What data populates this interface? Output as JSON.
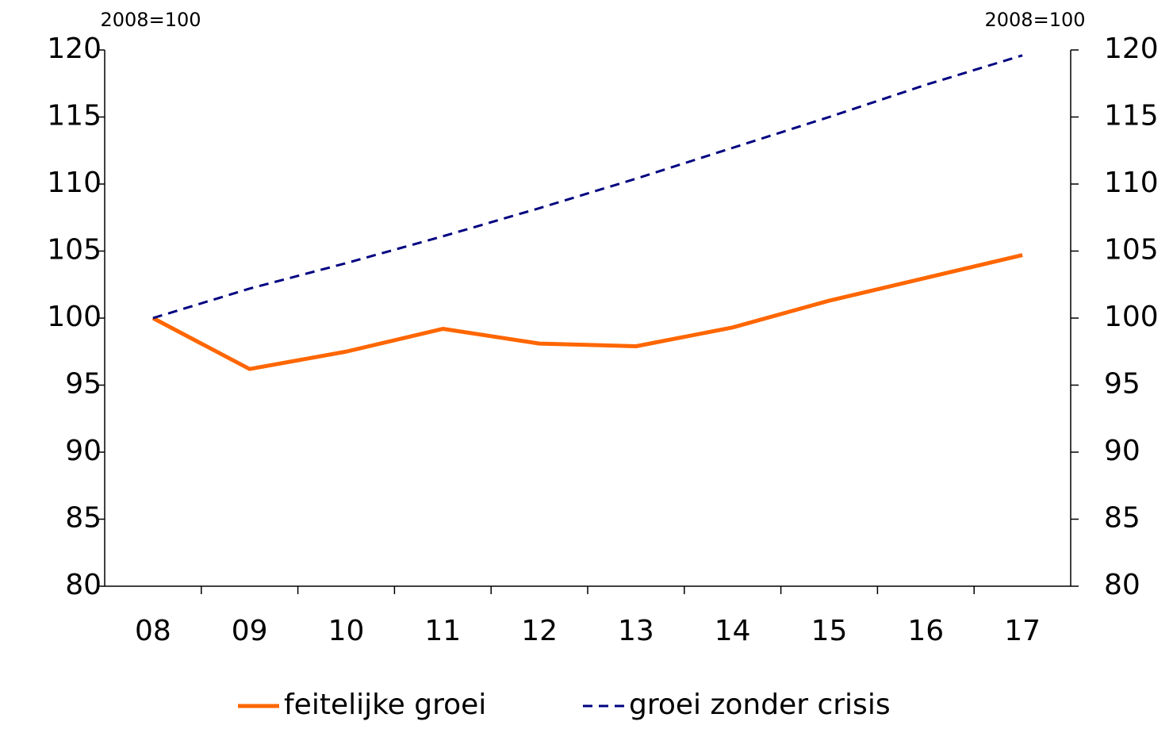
{
  "chart_data": {
    "type": "line",
    "y_label": "2008=100",
    "y2_label": "2008=100",
    "categories": [
      "08",
      "09",
      "10",
      "11",
      "12",
      "13",
      "14",
      "15",
      "16",
      "17"
    ],
    "series": [
      {
        "name": "feitelijke groei",
        "color": "#ff6600",
        "style": "solid",
        "values": [
          100,
          96.2,
          97.5,
          99.2,
          98.1,
          97.9,
          99.3,
          101.3,
          103.0,
          104.7
        ]
      },
      {
        "name": "groei zonder crisis",
        "color": "#000080",
        "style": "dashed",
        "values": [
          100,
          102.2,
          104.1,
          106.1,
          108.2,
          110.4,
          112.7,
          115.0,
          117.4,
          119.6
        ]
      }
    ],
    "ylim": [
      80,
      120
    ],
    "yticks": [
      80,
      85,
      90,
      95,
      100,
      105,
      110,
      115,
      120
    ],
    "y2lim": [
      80,
      120
    ],
    "y2ticks": [
      80,
      85,
      90,
      95,
      100,
      105,
      110,
      115,
      120
    ],
    "grid": false,
    "legend": "bottom"
  }
}
